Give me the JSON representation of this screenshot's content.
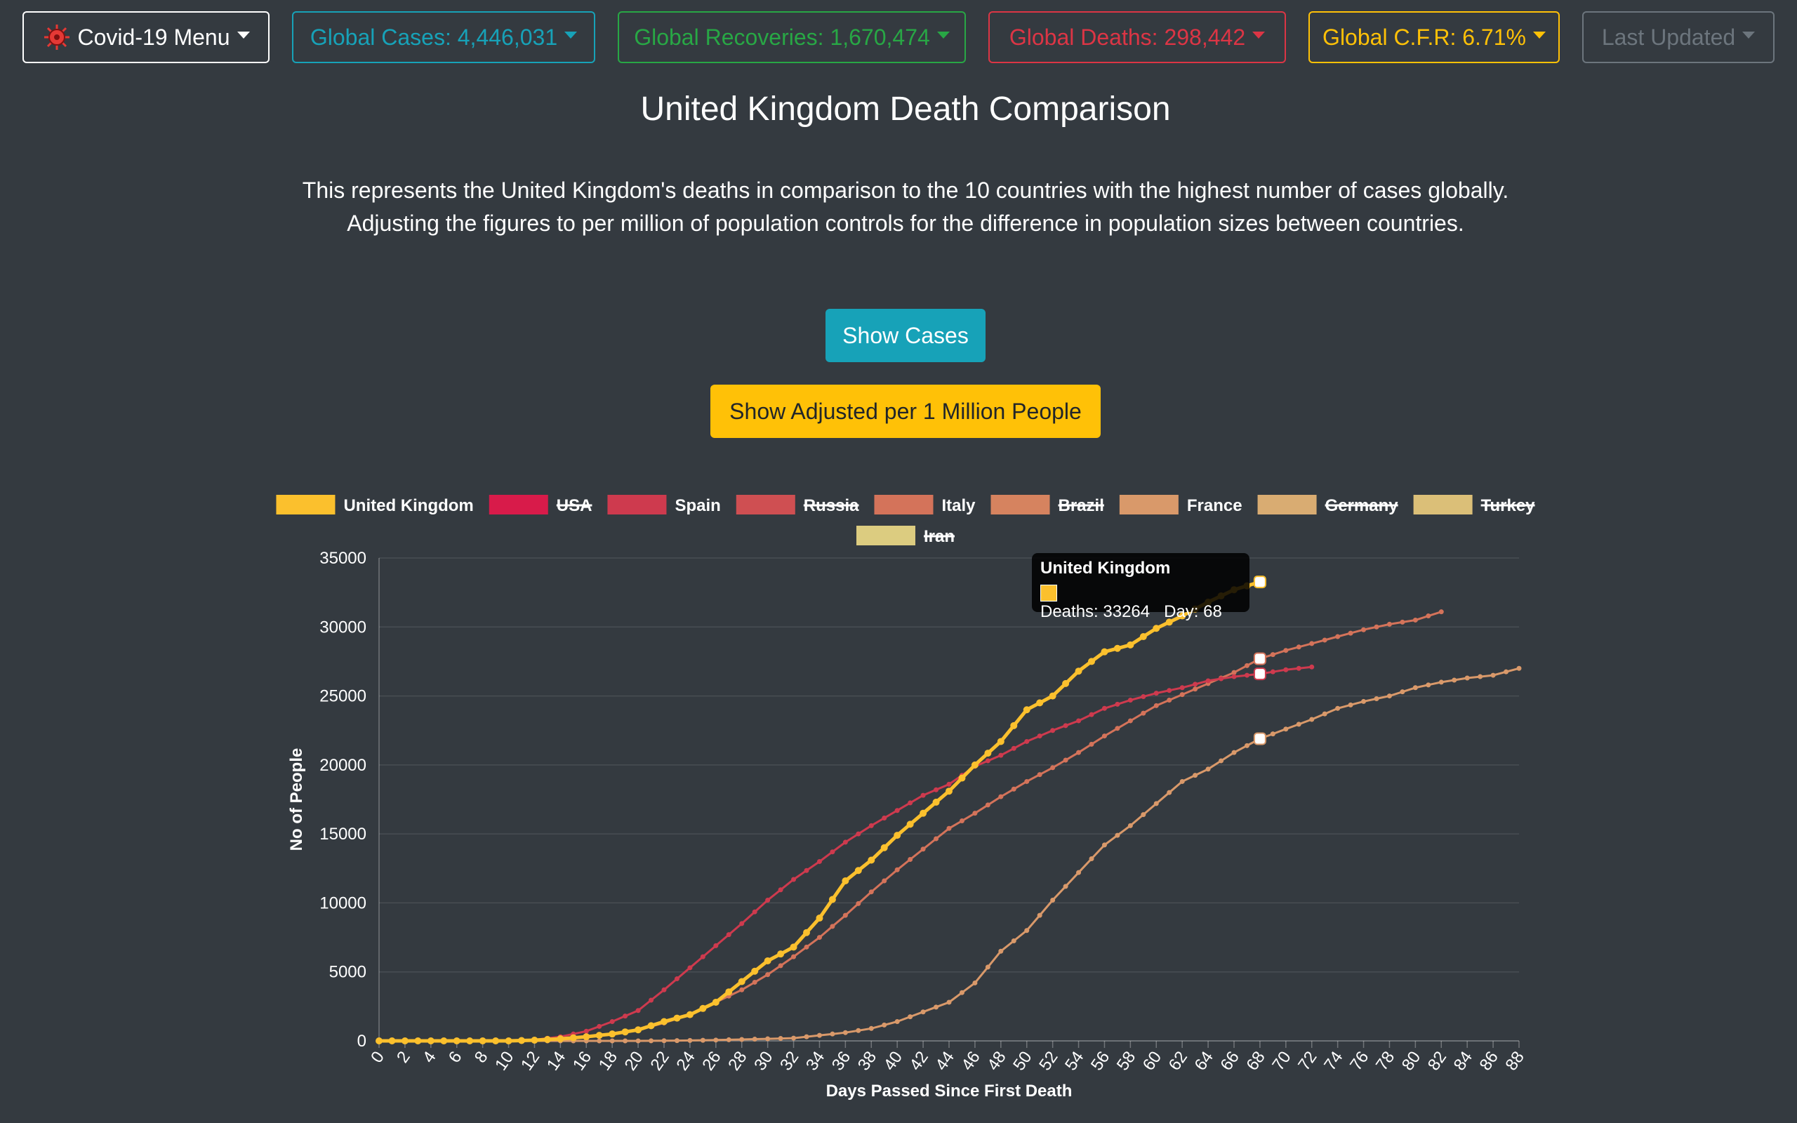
{
  "nav": {
    "menu": {
      "label": "Covid-19 Menu",
      "color": "#ffffff"
    },
    "cases": {
      "label": "Global Cases: 4,446,031",
      "color": "#17a2b8"
    },
    "recoveries": {
      "label": "Global Recoveries: 1,670,474",
      "color": "#28a745"
    },
    "deaths": {
      "label": "Global Deaths: 298,442",
      "color": "#dc3545"
    },
    "cfr": {
      "label": "Global C.F.R: 6.71%",
      "color": "#ffc107"
    },
    "updated": {
      "label": "Last Updated",
      "color": "#6c757d"
    }
  },
  "page": {
    "title": "United Kingdom Death Comparison",
    "description_line1": "This represents the United Kingdom's deaths in comparison to the 10 countries with the highest number of cases globally.",
    "description_line2": "Adjusting the figures to per million of population controls for the difference in population sizes between countries."
  },
  "buttons": {
    "show_cases": "Show Cases",
    "show_adjusted": "Show Adjusted per 1 Million People"
  },
  "tooltip": {
    "title": "United Kingdom",
    "body": "Deaths: 33264   Day: 68"
  },
  "chart_data": {
    "type": "line",
    "xlabel": "Days Passed Since First Death",
    "ylabel": "No of People",
    "xlim": [
      0,
      88
    ],
    "ylim": [
      0,
      35000
    ],
    "yticks": [
      0,
      5000,
      10000,
      15000,
      20000,
      25000,
      30000,
      35000
    ],
    "xticks_step": 2,
    "grid": true,
    "legend_position": "top",
    "legend": [
      {
        "name": "United Kingdom",
        "color": "#fbc02d",
        "hidden": false
      },
      {
        "name": "USA",
        "color": "#d81b4a",
        "hidden": true
      },
      {
        "name": "Spain",
        "color": "#ce3a4e",
        "hidden": false
      },
      {
        "name": "Russia",
        "color": "#cf4f52",
        "hidden": true
      },
      {
        "name": "Italy",
        "color": "#d4735a",
        "hidden": false
      },
      {
        "name": "Brazil",
        "color": "#d6835f",
        "hidden": true
      },
      {
        "name": "France",
        "color": "#d9996a",
        "hidden": false
      },
      {
        "name": "Germany",
        "color": "#d9ac72",
        "hidden": true
      },
      {
        "name": "Turkey",
        "color": "#dbbf78",
        "hidden": true
      },
      {
        "name": "Iran",
        "color": "#dccc80",
        "hidden": true
      }
    ],
    "series": [
      {
        "name": "United Kingdom",
        "color": "#fbc02d",
        "highlight_day": 68,
        "points": [
          [
            0,
            0
          ],
          [
            10,
            0
          ],
          [
            12,
            50
          ],
          [
            14,
            150
          ],
          [
            16,
            300
          ],
          [
            18,
            500
          ],
          [
            20,
            800
          ],
          [
            22,
            1400
          ],
          [
            24,
            1900
          ],
          [
            26,
            2800
          ],
          [
            28,
            4300
          ],
          [
            30,
            5800
          ],
          [
            32,
            6800
          ],
          [
            34,
            8900
          ],
          [
            36,
            11600
          ],
          [
            38,
            13100
          ],
          [
            40,
            14900
          ],
          [
            42,
            16500
          ],
          [
            44,
            18100
          ],
          [
            46,
            20000
          ],
          [
            48,
            21700
          ],
          [
            50,
            24000
          ],
          [
            52,
            25000
          ],
          [
            54,
            26800
          ],
          [
            56,
            28200
          ],
          [
            58,
            28700
          ],
          [
            60,
            29900
          ],
          [
            62,
            30800
          ],
          [
            64,
            31800
          ],
          [
            66,
            32700
          ],
          [
            68,
            33264
          ]
        ]
      },
      {
        "name": "Spain",
        "color": "#ce3a4e",
        "highlight_day": 68,
        "points": [
          [
            0,
            0
          ],
          [
            10,
            0
          ],
          [
            12,
            80
          ],
          [
            14,
            300
          ],
          [
            16,
            700
          ],
          [
            18,
            1400
          ],
          [
            20,
            2200
          ],
          [
            22,
            3700
          ],
          [
            24,
            5300
          ],
          [
            26,
            6900
          ],
          [
            28,
            8500
          ],
          [
            30,
            10200
          ],
          [
            32,
            11700
          ],
          [
            34,
            13000
          ],
          [
            36,
            14400
          ],
          [
            38,
            15600
          ],
          [
            40,
            16700
          ],
          [
            42,
            17800
          ],
          [
            44,
            18600
          ],
          [
            46,
            19900
          ],
          [
            48,
            20700
          ],
          [
            50,
            21700
          ],
          [
            52,
            22500
          ],
          [
            54,
            23200
          ],
          [
            56,
            24100
          ],
          [
            58,
            24700
          ],
          [
            60,
            25200
          ],
          [
            62,
            25600
          ],
          [
            64,
            26100
          ],
          [
            66,
            26400
          ],
          [
            68,
            26600
          ],
          [
            70,
            26900
          ],
          [
            72,
            27100
          ]
        ]
      },
      {
        "name": "Italy",
        "color": "#d4735a",
        "highlight_day": 68,
        "points": [
          [
            0,
            0
          ],
          [
            10,
            0
          ],
          [
            12,
            50
          ],
          [
            14,
            150
          ],
          [
            16,
            300
          ],
          [
            18,
            500
          ],
          [
            20,
            800
          ],
          [
            22,
            1300
          ],
          [
            24,
            1900
          ],
          [
            26,
            2800
          ],
          [
            28,
            3700
          ],
          [
            30,
            4800
          ],
          [
            32,
            6100
          ],
          [
            34,
            7500
          ],
          [
            36,
            9100
          ],
          [
            38,
            10800
          ],
          [
            40,
            12400
          ],
          [
            42,
            13900
          ],
          [
            44,
            15400
          ],
          [
            46,
            16500
          ],
          [
            48,
            17700
          ],
          [
            50,
            18800
          ],
          [
            52,
            19800
          ],
          [
            54,
            20900
          ],
          [
            56,
            22100
          ],
          [
            58,
            23200
          ],
          [
            60,
            24300
          ],
          [
            62,
            25100
          ],
          [
            64,
            25900
          ],
          [
            66,
            26700
          ],
          [
            68,
            27700
          ],
          [
            70,
            28300
          ],
          [
            72,
            28800
          ],
          [
            74,
            29300
          ],
          [
            76,
            29800
          ],
          [
            78,
            30200
          ],
          [
            80,
            30500
          ],
          [
            82,
            31100
          ]
        ]
      },
      {
        "name": "France",
        "color": "#d9996a",
        "highlight_day": 68,
        "points": [
          [
            0,
            0
          ],
          [
            20,
            0
          ],
          [
            22,
            10
          ],
          [
            24,
            30
          ],
          [
            26,
            60
          ],
          [
            28,
            100
          ],
          [
            30,
            150
          ],
          [
            32,
            200
          ],
          [
            34,
            400
          ],
          [
            36,
            600
          ],
          [
            38,
            900
          ],
          [
            40,
            1400
          ],
          [
            42,
            2100
          ],
          [
            44,
            2800
          ],
          [
            46,
            4200
          ],
          [
            48,
            6500
          ],
          [
            50,
            8000
          ],
          [
            52,
            10200
          ],
          [
            54,
            12200
          ],
          [
            56,
            14200
          ],
          [
            58,
            15600
          ],
          [
            60,
            17200
          ],
          [
            62,
            18800
          ],
          [
            64,
            19700
          ],
          [
            66,
            20900
          ],
          [
            68,
            21900
          ],
          [
            70,
            22600
          ],
          [
            72,
            23300
          ],
          [
            74,
            24100
          ],
          [
            76,
            24600
          ],
          [
            78,
            25000
          ],
          [
            80,
            25600
          ],
          [
            82,
            26000
          ],
          [
            84,
            26300
          ],
          [
            86,
            26500
          ],
          [
            88,
            27000
          ]
        ]
      }
    ]
  }
}
